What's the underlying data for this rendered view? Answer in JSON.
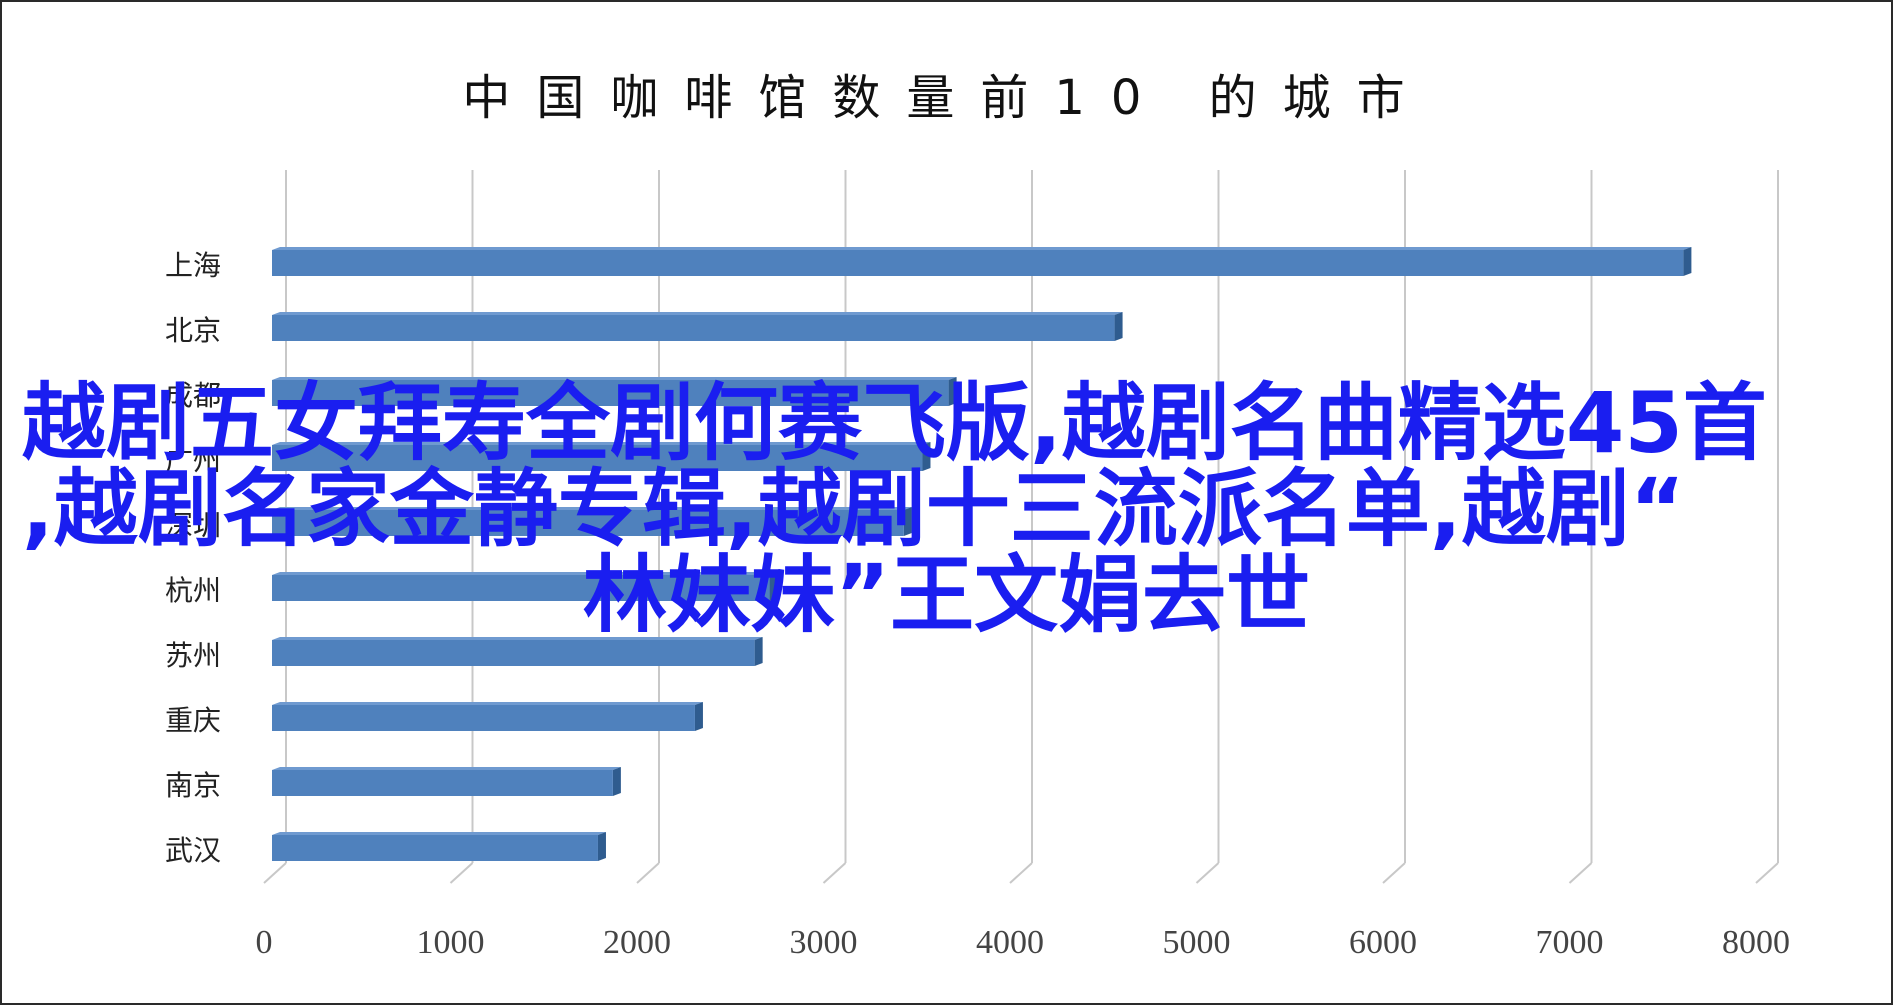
{
  "chart_data": {
    "type": "bar",
    "orientation": "horizontal",
    "title": "中国咖啡馆数量前10 的城市",
    "categories": [
      "上海",
      "北京",
      "成都",
      "广州",
      "深圳",
      "杭州",
      "苏州",
      "重庆",
      "南京",
      "武汉"
    ],
    "values": [
      7600,
      4550,
      3660,
      3520,
      3420,
      2700,
      2620,
      2300,
      1860,
      1780
    ],
    "xlim": [
      0,
      8000
    ],
    "xticks": [
      "0",
      "1000",
      "2000",
      "3000",
      "4000",
      "5000",
      "6000",
      "7000",
      "8000"
    ],
    "grid": true,
    "bar_color": "#4f81bd"
  },
  "overlay": {
    "line1": "越剧五女拜寿全剧何赛飞版,越剧名曲精选45首",
    "line2": ",越剧名家金静专辑,越剧十三流派名单,越剧“",
    "line3": "林妹妹”王文娟去世",
    "color": "#1a1ef0"
  }
}
